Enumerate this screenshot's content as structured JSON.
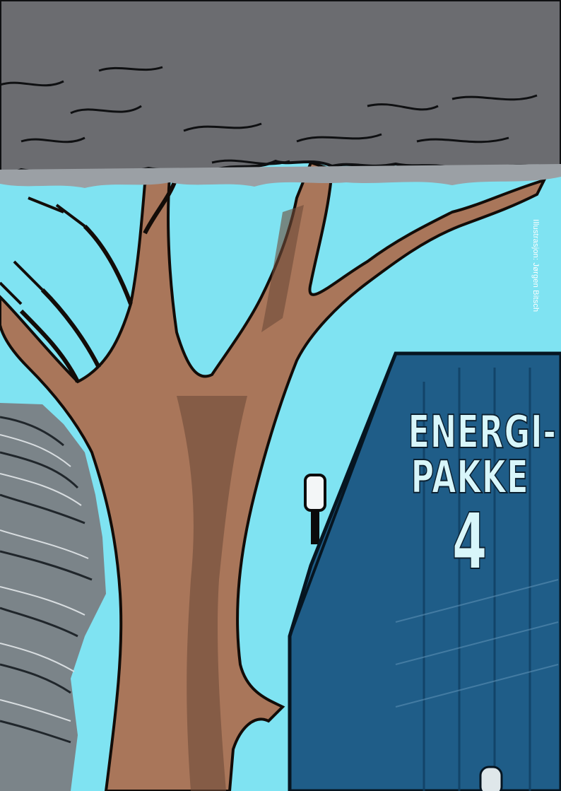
{
  "cover": {
    "title_line1": "ENERGI-",
    "title_line2": "PAKKE",
    "title_number": "4",
    "credit": "Illustrasjon: Jørgen Bitsch"
  },
  "colors": {
    "sky": "#7fe3f2",
    "cloud": "#6b6c70",
    "trunk": "#a9765a",
    "building": "#1f5d88",
    "water": "#7b8489"
  },
  "icons": [
    "tree-illustration",
    "cloud-illustration",
    "building-illustration",
    "lamp-illustration",
    "water-illustration"
  ]
}
